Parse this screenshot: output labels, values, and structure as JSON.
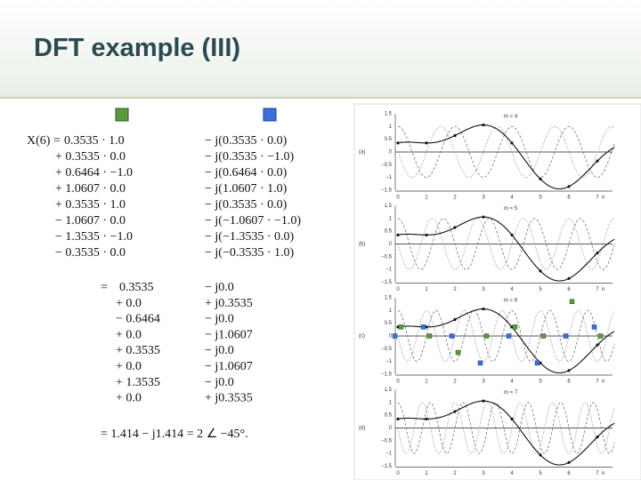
{
  "title": "DFT example (III)",
  "equation": {
    "lhs": "X(6) =",
    "terms": [
      [
        "0.3535 · 1.0",
        "− j(0.3535 · 0.0)"
      ],
      [
        "+ 0.3535 · 0.0",
        "− j(0.3535 · −1.0)"
      ],
      [
        "+ 0.6464 · −1.0",
        "− j(0.6464 · 0.0)"
      ],
      [
        "+ 1.0607 · 0.0",
        "− j(1.0607 · 1.0)"
      ],
      [
        "+ 0.3535 · 1.0",
        "− j(0.3535 · 0.0)"
      ],
      [
        "− 1.0607 · 0.0",
        "− j(−1.0607 · −1.0)"
      ],
      [
        "− 1.3535 · −1.0",
        "− j(−1.3535 · 0.0)"
      ],
      [
        "− 0.3535 · 0.0",
        "− j(−0.3535 · 1.0)"
      ]
    ],
    "equals": "=",
    "products": [
      [
        "0.3535",
        "− j0.0"
      ],
      [
        "+ 0.0",
        "+ j0.3535"
      ],
      [
        "− 0.6464",
        "− j0.0"
      ],
      [
        "+ 0.0",
        "− j1.0607"
      ],
      [
        "+ 0.3535",
        "− j0.0"
      ],
      [
        "+ 0.0",
        "− j1.0607"
      ],
      [
        "+ 1.3535",
        "− j0.0"
      ],
      [
        "+ 0.0",
        "+ j0.3535"
      ]
    ],
    "result": "= 1.414 − j1.414 = 2 ∠ −45°."
  },
  "figure": {
    "yticks": [
      "1.5",
      "1",
      "0.5",
      "0",
      "−0.5",
      "−1",
      "−1.5"
    ],
    "xticks": [
      "0",
      "1",
      "2",
      "3",
      "4",
      "5",
      "6",
      "7"
    ],
    "xlabel": "n",
    "panels": [
      {
        "label": "(a)",
        "m": "m = 4"
      },
      {
        "label": "(b)",
        "m": "m = 5"
      },
      {
        "label": "(c)",
        "m": "m = 6"
      },
      {
        "label": "(d)",
        "m": "m = 7"
      }
    ]
  }
}
